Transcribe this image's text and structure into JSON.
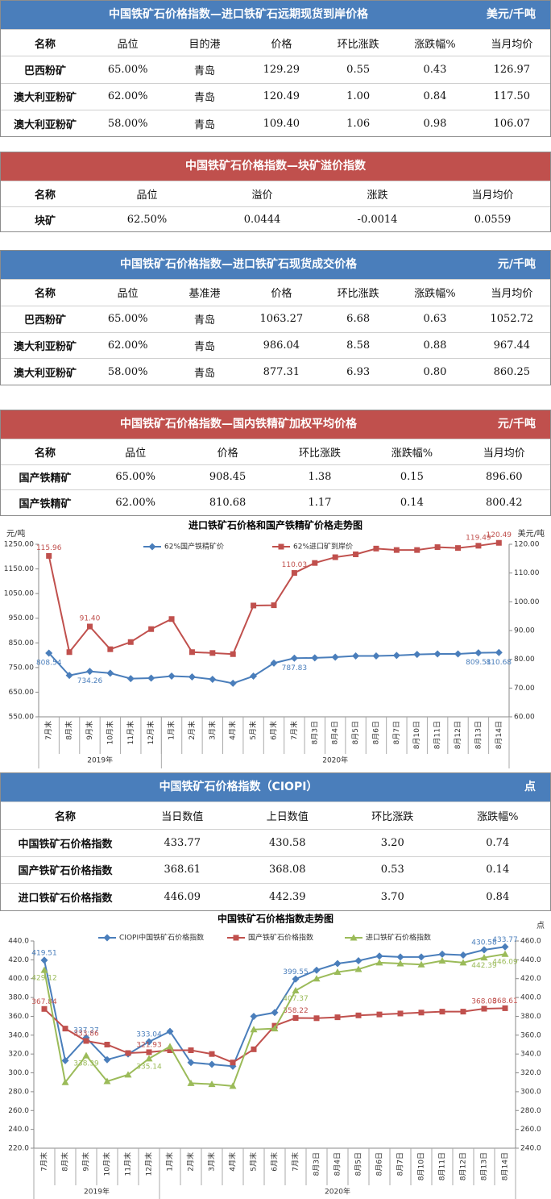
{
  "tables": [
    {
      "title": "中国铁矿石价格指数—进口铁矿石远期现货到岸价格",
      "unit": "美元/千吨",
      "color": "#4a7ebb",
      "columns": [
        "名称",
        "品位",
        "目的港",
        "价格",
        "环比涨跌",
        "涨跌幅%",
        "当月均价"
      ],
      "rows": [
        [
          "巴西粉矿",
          "65.00%",
          "青岛",
          "129.29",
          "0.55",
          "0.43",
          "126.97"
        ],
        [
          "澳大利亚粉矿",
          "62.00%",
          "青岛",
          "120.49",
          "1.00",
          "0.84",
          "117.50"
        ],
        [
          "澳大利亚粉矿",
          "58.00%",
          "青岛",
          "109.40",
          "1.06",
          "0.98",
          "106.07"
        ]
      ]
    },
    {
      "title": "中国铁矿石价格指数—块矿溢价指数",
      "color": "#c0504d",
      "columns": [
        "名称",
        "品位",
        "溢价",
        "涨跌",
        "当月均价"
      ],
      "rows": [
        [
          "块矿",
          "62.50%",
          "0.0444",
          "-0.0014",
          "0.0559"
        ]
      ]
    },
    {
      "title": "中国铁矿石价格指数—进口铁矿石现货成交价格",
      "unit": "元/千吨",
      "color": "#4a7ebb",
      "columns": [
        "名称",
        "品位",
        "基准港",
        "价格",
        "环比涨跌",
        "涨跌幅%",
        "当月均价"
      ],
      "rows": [
        [
          "巴西粉矿",
          "65.00%",
          "青岛",
          "1063.27",
          "6.68",
          "0.63",
          "1052.72"
        ],
        [
          "澳大利亚粉矿",
          "62.00%",
          "青岛",
          "986.04",
          "8.58",
          "0.88",
          "967.44"
        ],
        [
          "澳大利亚粉矿",
          "58.00%",
          "青岛",
          "877.31",
          "6.93",
          "0.80",
          "860.25"
        ]
      ]
    },
    {
      "title": "中国铁矿石价格指数—国内铁精矿加权平均价格",
      "unit": "元/千吨",
      "color": "#c0504d",
      "columns": [
        "名称",
        "品位",
        "价格",
        "环比涨跌",
        "涨跌幅%",
        "当月均价"
      ],
      "rows": [
        [
          "国产铁精矿",
          "65.00%",
          "908.45",
          "1.38",
          "0.15",
          "896.60"
        ],
        [
          "国产铁精矿",
          "62.00%",
          "810.68",
          "1.17",
          "0.14",
          "800.42"
        ]
      ]
    },
    {
      "title": "中国铁矿石价格指数（CIOPI）",
      "unit": "点",
      "color": "#4a7ebb",
      "columns": [
        "名称",
        "当日数值",
        "上日数值",
        "环比涨跌",
        "涨跌幅%"
      ],
      "rows": [
        [
          "中国铁矿石价格指数",
          "433.77",
          "430.58",
          "3.20",
          "0.74"
        ],
        [
          "国产铁矿石价格指数",
          "368.61",
          "368.08",
          "0.53",
          "0.14"
        ],
        [
          "进口铁矿石价格指数",
          "446.09",
          "442.39",
          "3.70",
          "0.84"
        ]
      ]
    }
  ],
  "chart_data": [
    {
      "type": "line",
      "title": "进口铁矿石价格和国产铁精矿价格走势图",
      "y_unit": "元/吨",
      "y2_unit": "美元/吨",
      "category_groups": [
        {
          "name": "2019年",
          "categories": [
            "7月末",
            "8月末",
            "9月末",
            "10月末",
            "11月末",
            "12月末"
          ]
        },
        {
          "name": "2020年",
          "categories": [
            "1月末",
            "2月末",
            "3月末",
            "4月末",
            "5月末",
            "6月末",
            "7月末",
            "8月3日",
            "8月4日",
            "8月5日",
            "8月6日",
            "8月7日",
            "8月10日",
            "8月11日",
            "8月12日",
            "8月13日",
            "8月14日"
          ]
        }
      ],
      "ylim": [
        550,
        1250
      ],
      "yticks": [
        {
          "value": 550,
          "label": "550.00"
        },
        {
          "value": 650,
          "label": "650.00"
        },
        {
          "value": 750,
          "label": "750.00"
        },
        {
          "value": 850,
          "label": "850.00"
        },
        {
          "value": 950,
          "label": "950.00"
        },
        {
          "value": 1050,
          "label": "1050.00"
        },
        {
          "value": 1150,
          "label": "1150.00"
        },
        {
          "value": 1250,
          "label": "1250.00"
        }
      ],
      "y2lim": [
        60,
        120
      ],
      "y2ticks": [
        {
          "value": 60,
          "label": "60.00"
        },
        {
          "value": 70,
          "label": "70.00"
        },
        {
          "value": 80,
          "label": "80.00"
        },
        {
          "value": 90,
          "label": "90.00"
        },
        {
          "value": 100,
          "label": "100.00"
        },
        {
          "value": 110,
          "label": "110.00"
        },
        {
          "value": 120,
          "label": "120.00"
        }
      ],
      "grid": false,
      "series": [
        {
          "name": "62%国产铁精矿价",
          "color": "#4a7ebb",
          "marker": "diamond",
          "values": [
            808.54,
            718,
            734.26,
            727,
            705,
            707,
            715,
            712,
            702,
            686,
            715,
            768,
            787.83,
            789,
            792,
            797,
            797,
            799,
            803,
            805,
            805,
            809.51,
            810.68
          ],
          "value_labels": [
            "808.54",
            null,
            "734.26",
            null,
            null,
            null,
            null,
            null,
            null,
            null,
            null,
            null,
            "787.83",
            null,
            null,
            null,
            null,
            null,
            null,
            null,
            null,
            "809.51",
            "810.68"
          ]
        },
        {
          "name": "62%进口矿到岸价",
          "color": "#c0504d",
          "marker": "square",
          "axis": "y2",
          "values": [
            115.96,
            82.5,
            91.4,
            83.5,
            86,
            90.5,
            94,
            82.5,
            82.2,
            81.8,
            98.7,
            98.8,
            110.03,
            113.5,
            115.5,
            116.5,
            118.5,
            118,
            118,
            119,
            118.7,
            119.49,
            120.49
          ],
          "value_labels": [
            "115.96",
            null,
            "91.40",
            null,
            null,
            null,
            null,
            null,
            null,
            null,
            null,
            null,
            "110.03",
            null,
            null,
            null,
            null,
            null,
            null,
            null,
            null,
            "119.49",
            "120.49"
          ]
        }
      ]
    },
    {
      "type": "line",
      "title": "中国铁矿石价格指数走势图",
      "y2_unit": "点",
      "category_groups": [
        {
          "name": "2019年",
          "categories": [
            "7月末",
            "8月末",
            "9月末",
            "10月末",
            "11月末",
            "12月末"
          ]
        },
        {
          "name": "2020年",
          "categories": [
            "1月末",
            "2月末",
            "3月末",
            "4月末",
            "5月末",
            "6月末",
            "7月末",
            "8月3日",
            "8月4日",
            "8月5日",
            "8月6日",
            "8月7日",
            "8月10日",
            "8月11日",
            "8月12日",
            "8月13日",
            "8月14日"
          ]
        }
      ],
      "ylim": [
        220,
        440
      ],
      "yticks": [
        {
          "value": 220,
          "label": "220.0"
        },
        {
          "value": 240,
          "label": "240.0"
        },
        {
          "value": 260,
          "label": "260.0"
        },
        {
          "value": 280,
          "label": "280.0"
        },
        {
          "value": 300,
          "label": "300.0"
        },
        {
          "value": 320,
          "label": "320.0"
        },
        {
          "value": 340,
          "label": "340.0"
        },
        {
          "value": 360,
          "label": "360.0"
        },
        {
          "value": 380,
          "label": "380.0"
        },
        {
          "value": 400,
          "label": "400.0"
        },
        {
          "value": 420,
          "label": "420.0"
        },
        {
          "value": 440,
          "label": "440.0"
        }
      ],
      "y2lim": [
        240,
        460
      ],
      "y2ticks": [
        {
          "value": 240,
          "label": "240.0"
        },
        {
          "value": 260,
          "label": "260.0"
        },
        {
          "value": 280,
          "label": "280.0"
        },
        {
          "value": 300,
          "label": "300.0"
        },
        {
          "value": 320,
          "label": "320.0"
        },
        {
          "value": 340,
          "label": "340.0"
        },
        {
          "value": 360,
          "label": "360.0"
        },
        {
          "value": 380,
          "label": "380.0"
        },
        {
          "value": 400,
          "label": "400.0"
        },
        {
          "value": 420,
          "label": "420.0"
        },
        {
          "value": 440,
          "label": "440.0"
        },
        {
          "value": 460,
          "label": "460.0"
        }
      ],
      "grid": false,
      "series": [
        {
          "name": "CIOPI中国铁矿石价格指数",
          "color": "#4a7ebb",
          "marker": "diamond",
          "values": [
            419.51,
            313,
            337.27,
            314,
            320,
            333.04,
            344,
            311,
            309,
            307,
            360,
            364,
            399.55,
            409,
            416,
            419,
            424,
            423,
            423,
            426,
            425,
            430.58,
            433.77
          ],
          "value_labels": [
            "419.51",
            null,
            "337.27",
            null,
            null,
            "333.04",
            null,
            null,
            null,
            null,
            null,
            null,
            "399.55",
            null,
            null,
            null,
            null,
            null,
            null,
            null,
            null,
            "430.58",
            "433.77"
          ]
        },
        {
          "name": "国产铁矿石价格指数",
          "color": "#c0504d",
          "marker": "square",
          "values": [
            367.84,
            347,
            333.86,
            330,
            321,
            321.93,
            324,
            324,
            320,
            311,
            325,
            350,
            358.22,
            358,
            359,
            361,
            362,
            363,
            364,
            365,
            365,
            368.08,
            368.61
          ],
          "value_labels": [
            "367.84",
            null,
            "333.86",
            null,
            null,
            "321.93",
            null,
            null,
            null,
            null,
            null,
            null,
            "358.22",
            null,
            null,
            null,
            null,
            null,
            null,
            null,
            null,
            "368.08",
            "368.61"
          ]
        },
        {
          "name": "进口铁矿石价格指数",
          "color": "#9bbb59",
          "marker": "triangle",
          "axis": "y2",
          "values": [
            429.12,
            310,
            338.39,
            311,
            318,
            335.14,
            348,
            309,
            308,
            306,
            366,
            367,
            407.37,
            420,
            427,
            430,
            437,
            436,
            435,
            439,
            437,
            442.39,
            446.09
          ],
          "value_labels": [
            "429.12",
            null,
            "338.39",
            null,
            null,
            "335.14",
            null,
            null,
            null,
            null,
            null,
            null,
            "407.37",
            null,
            null,
            null,
            null,
            null,
            null,
            null,
            null,
            "442.39",
            "446.09"
          ]
        }
      ]
    }
  ]
}
